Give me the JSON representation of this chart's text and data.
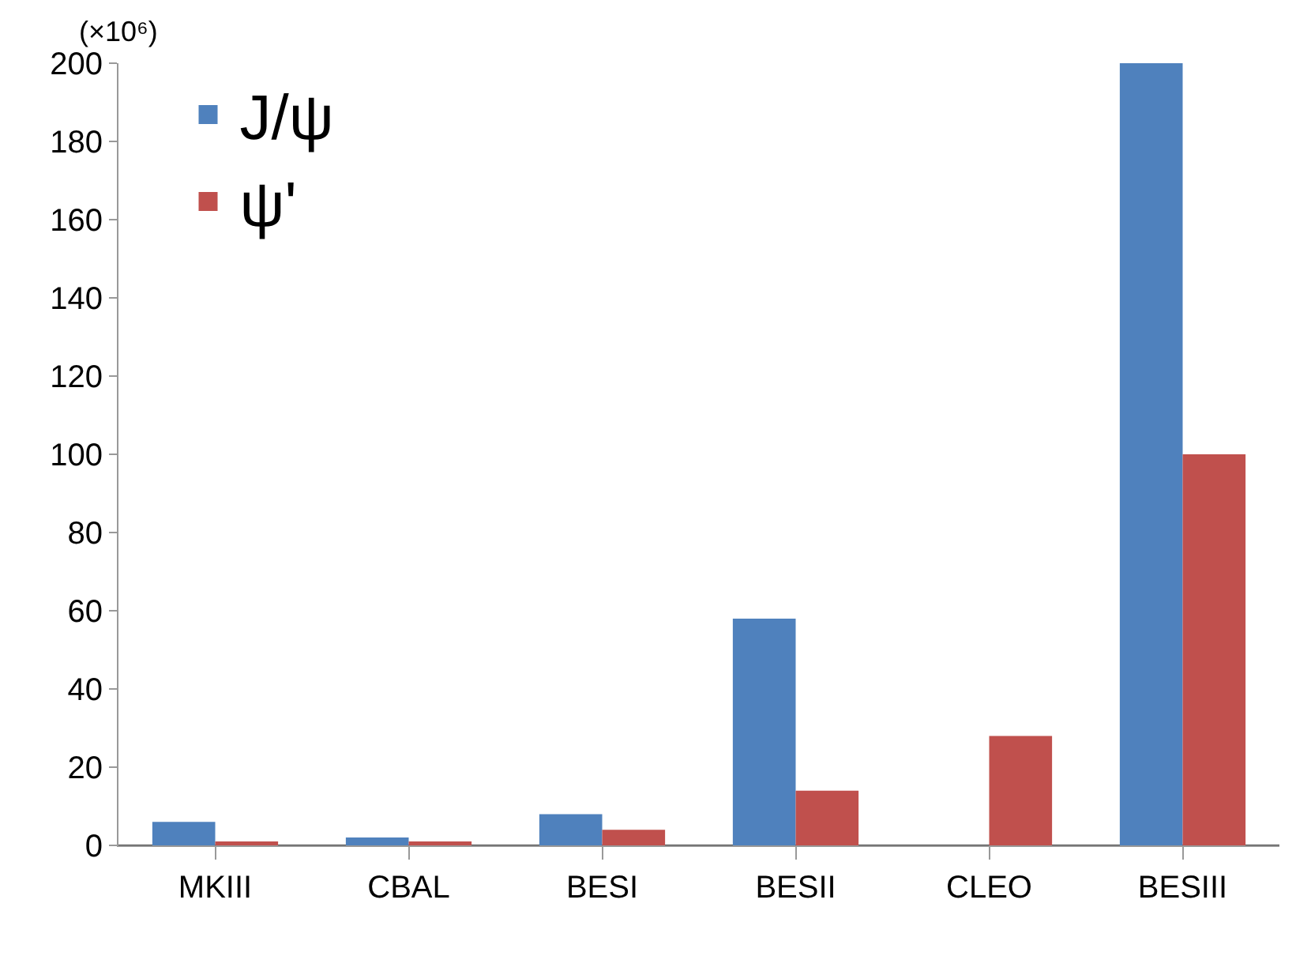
{
  "chart_data": {
    "type": "bar",
    "ylabel": "(×10⁶)",
    "categories": [
      "MKIII",
      "CBAL",
      "BESI",
      "BESII",
      "CLEO",
      "BESIII"
    ],
    "series": [
      {
        "name": "J/ψ",
        "color": "#4f81bd",
        "values": [
          6,
          2,
          8,
          58,
          0,
          200
        ]
      },
      {
        "name": "ψ'",
        "color": "#c0504d",
        "values": [
          1,
          1,
          4,
          14,
          28,
          100
        ]
      }
    ],
    "ylim": [
      0,
      200
    ],
    "yticks": [
      0,
      20,
      40,
      60,
      80,
      100,
      120,
      140,
      160,
      180,
      200
    ],
    "grid": false,
    "legend": "top left"
  }
}
